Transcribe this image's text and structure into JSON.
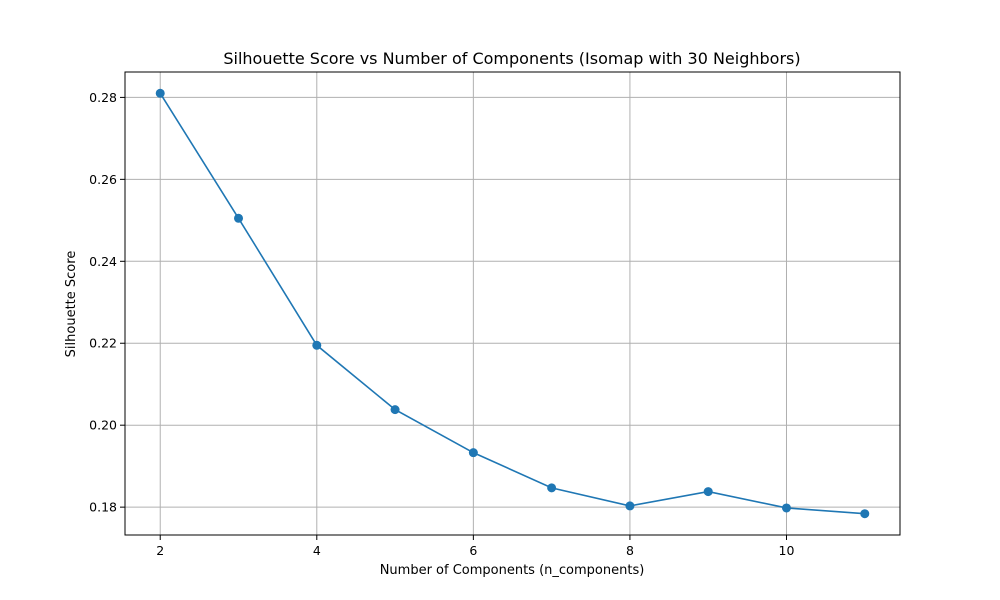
{
  "chart_data": {
    "type": "line",
    "title": "Silhouette Score vs Number of Components (Isomap with 30 Neighbors)",
    "xlabel": "Number of Components (n_components)",
    "ylabel": "Silhouette Score",
    "x": [
      2,
      3,
      4,
      5,
      6,
      7,
      8,
      9,
      10,
      11
    ],
    "series": [
      {
        "values": [
          0.281,
          0.2505,
          0.2195,
          0.2038,
          0.1933,
          0.1847,
          0.1803,
          0.1838,
          0.1798,
          0.1784
        ]
      }
    ],
    "xlim": [
      1.55,
      11.45
    ],
    "ylim": [
      0.1732,
      0.2862
    ],
    "xticks": [
      2,
      4,
      6,
      8,
      10
    ],
    "yticks": [
      0.18,
      0.2,
      0.22,
      0.24,
      0.26,
      0.28
    ],
    "ytick_labels": [
      "0.18",
      "0.20",
      "0.22",
      "0.24",
      "0.26",
      "0.28"
    ],
    "grid": true,
    "marker": "circle",
    "line_color": "#1f77b4"
  }
}
